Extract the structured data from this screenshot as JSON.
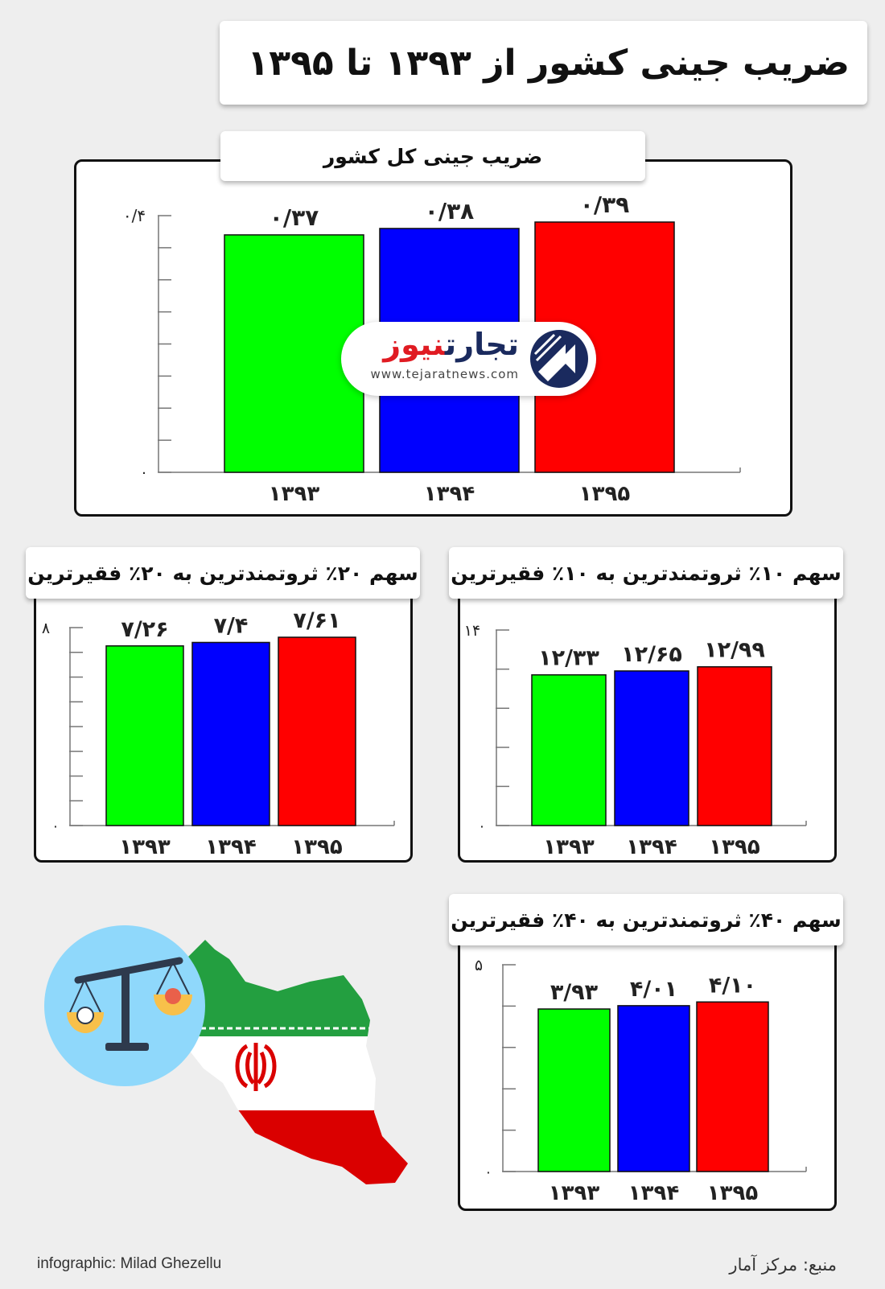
{
  "title": "ضریب جینی کشور از ۱۳۹۳ تا ۱۳۹۵",
  "watermark": {
    "name_part1": "تجارت",
    "name_part2": "نیوز",
    "url": "www.tejaratnews.com"
  },
  "footer": {
    "credit": "infographic: Milad Ghezellu",
    "source": "منبع: مرکز آمار"
  },
  "colors": {
    "green": "#00ff00",
    "blue": "#0000ff",
    "red": "#ff0000"
  },
  "chart_data": [
    {
      "id": "main",
      "type": "bar",
      "title": "ضریب جینی کل کشور",
      "categories": [
        "۱۳۹۳",
        "۱۳۹۴",
        "۱۳۹۵"
      ],
      "values": [
        0.37,
        0.38,
        0.39
      ],
      "value_labels": [
        "۰/۳۷",
        "۰/۳۸",
        "۰/۳۹"
      ],
      "ylim": [
        0,
        0.4
      ],
      "y_tick_labels": [
        "۰",
        "۰/۴"
      ],
      "colors": [
        "#00ff00",
        "#0000ff",
        "#ff0000"
      ]
    },
    {
      "id": "top10",
      "type": "bar",
      "title": "سهم ۱۰٪ ثروتمندترین به ۱۰٪ فقیرترین",
      "categories": [
        "۱۳۹۳",
        "۱۳۹۴",
        "۱۳۹۵"
      ],
      "values": [
        12.33,
        12.65,
        12.99
      ],
      "value_labels": [
        "۱۲/۳۳",
        "۱۲/۶۵",
        "۱۲/۹۹"
      ],
      "ylim": [
        0,
        16
      ],
      "y_tick_labels": [
        "۰",
        "۱۴"
      ],
      "colors": [
        "#00ff00",
        "#0000ff",
        "#ff0000"
      ]
    },
    {
      "id": "top20",
      "type": "bar",
      "title": "سهم ۲۰٪ ثروتمندترین به ۲۰٪ فقیرترین",
      "categories": [
        "۱۳۹۳",
        "۱۳۹۴",
        "۱۳۹۵"
      ],
      "values": [
        7.26,
        7.4,
        7.61
      ],
      "value_labels": [
        "۷/۲۶",
        "۷/۴",
        "۷/۶۱"
      ],
      "ylim": [
        0,
        8
      ],
      "y_tick_labels": [
        "۰",
        "۸"
      ],
      "colors": [
        "#00ff00",
        "#0000ff",
        "#ff0000"
      ]
    },
    {
      "id": "top40",
      "type": "bar",
      "title": "سهم ۴۰٪ ثروتمندترین به ۴۰٪ فقیرترین",
      "categories": [
        "۱۳۹۳",
        "۱۳۹۴",
        "۱۳۹۵"
      ],
      "values": [
        3.93,
        4.01,
        4.1
      ],
      "value_labels": [
        "۳/۹۳",
        "۴/۰۱",
        "۴/۱۰"
      ],
      "ylim": [
        0,
        5
      ],
      "y_tick_labels": [
        "۰",
        "۵"
      ],
      "colors": [
        "#00ff00",
        "#0000ff",
        "#ff0000"
      ]
    }
  ]
}
